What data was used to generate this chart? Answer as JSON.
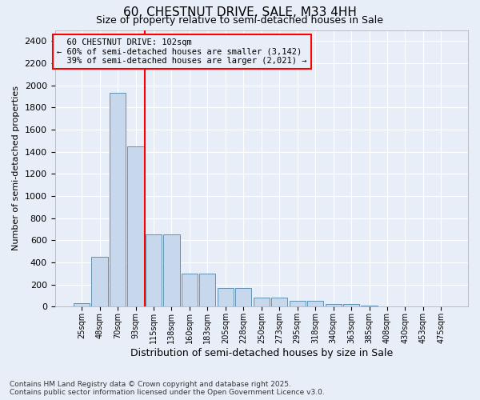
{
  "title": "60, CHESTNUT DRIVE, SALE, M33 4HH",
  "subtitle": "Size of property relative to semi-detached houses in Sale",
  "xlabel": "Distribution of semi-detached houses by size in Sale",
  "ylabel": "Number of semi-detached properties",
  "categories": [
    "25sqm",
    "48sqm",
    "70sqm",
    "93sqm",
    "115sqm",
    "138sqm",
    "160sqm",
    "183sqm",
    "205sqm",
    "228sqm",
    "250sqm",
    "273sqm",
    "295sqm",
    "318sqm",
    "340sqm",
    "363sqm",
    "385sqm",
    "408sqm",
    "430sqm",
    "453sqm",
    "475sqm"
  ],
  "values": [
    30,
    450,
    1930,
    1450,
    650,
    650,
    300,
    300,
    170,
    170,
    80,
    80,
    50,
    50,
    25,
    25,
    10,
    5,
    5,
    0,
    0
  ],
  "bar_color": "#c8d8ec",
  "bar_edge_color": "#6090b0",
  "property_label": "60 CHESTNUT DRIVE: 102sqm",
  "pct_smaller": 60,
  "n_smaller": 3142,
  "pct_larger": 39,
  "n_larger": 2021,
  "vline_x_index": 3.5,
  "background_color": "#e8eef8",
  "grid_color": "#ffffff",
  "ylim": [
    0,
    2500
  ],
  "yticks": [
    0,
    200,
    400,
    600,
    800,
    1000,
    1200,
    1400,
    1600,
    1800,
    2000,
    2200,
    2400
  ],
  "footnote": "Contains HM Land Registry data © Crown copyright and database right 2025.\nContains public sector information licensed under the Open Government Licence v3.0."
}
